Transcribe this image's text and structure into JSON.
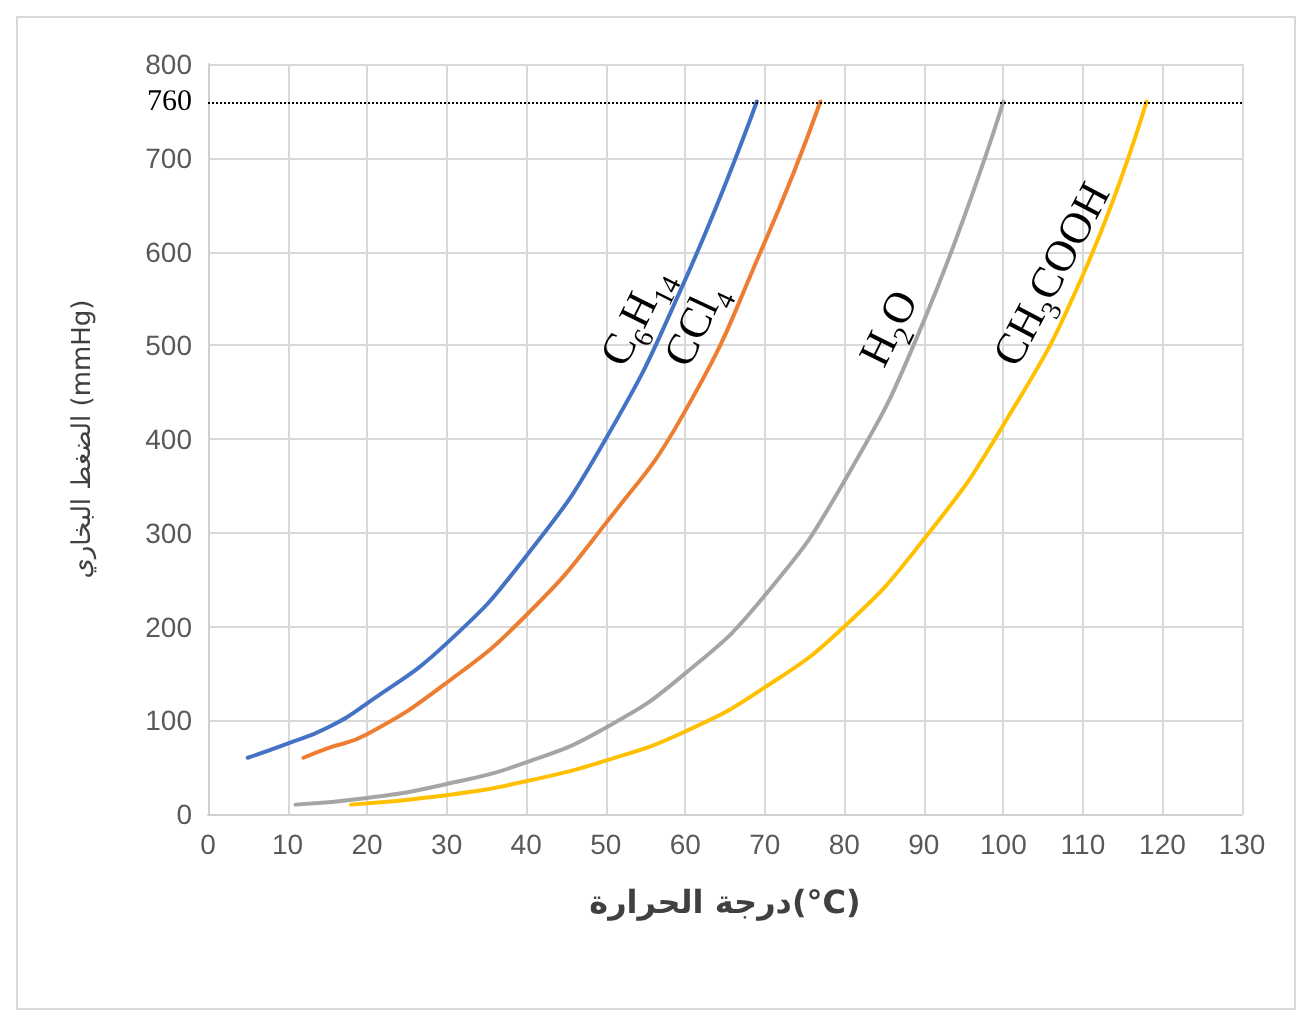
{
  "chart_data": {
    "type": "line",
    "xlabel": "درجة الحرارة(°C)",
    "ylabel": "الضغط البخاري (mmHg)",
    "xlim": [
      0,
      130
    ],
    "xticks": [
      0,
      10,
      20,
      30,
      40,
      50,
      60,
      70,
      80,
      90,
      100,
      110,
      120,
      130
    ],
    "ylim": [
      0,
      800
    ],
    "yticks": [
      0,
      100,
      200,
      300,
      400,
      500,
      600,
      700,
      800
    ],
    "grid": true,
    "legend": false,
    "marker": "none",
    "line_style": "solid",
    "ref_lines": [
      {
        "axis": "y",
        "value": 760,
        "label": "760",
        "color": "#000000",
        "line_style": "dotted"
      }
    ],
    "series": [
      {
        "name": "C$_{6}$H$_{14}$",
        "color": "#4472c4",
        "x": [
          5,
          10,
          15,
          20,
          30,
          40,
          50,
          60,
          69
        ],
        "values": [
          60,
          75,
          92,
          118,
          182,
          275,
          400,
          570,
          760
        ]
      },
      {
        "name": "CCl$_{4}$",
        "color": "#ed7d31",
        "x": [
          12,
          15,
          20,
          30,
          40,
          50,
          60,
          70,
          77
        ],
        "values": [
          60,
          70,
          85,
          140,
          212,
          310,
          430,
          610,
          760
        ]
      },
      {
        "name": "H$_{2}$O",
        "color": "#a5a5a5",
        "x": [
          11,
          20,
          30,
          40,
          50,
          60,
          70,
          80,
          90,
          100
        ],
        "values": [
          10,
          17,
          32,
          55,
          92,
          150,
          233,
          355,
          526,
          760
        ]
      },
      {
        "name": "CH$_{3}$COOH",
        "color": "#ffc000",
        "x": [
          18,
          30,
          40,
          50,
          60,
          70,
          80,
          90,
          100,
          110,
          118
        ],
        "values": [
          10,
          20,
          35,
          57,
          88,
          135,
          200,
          293,
          415,
          575,
          760
        ]
      }
    ]
  }
}
